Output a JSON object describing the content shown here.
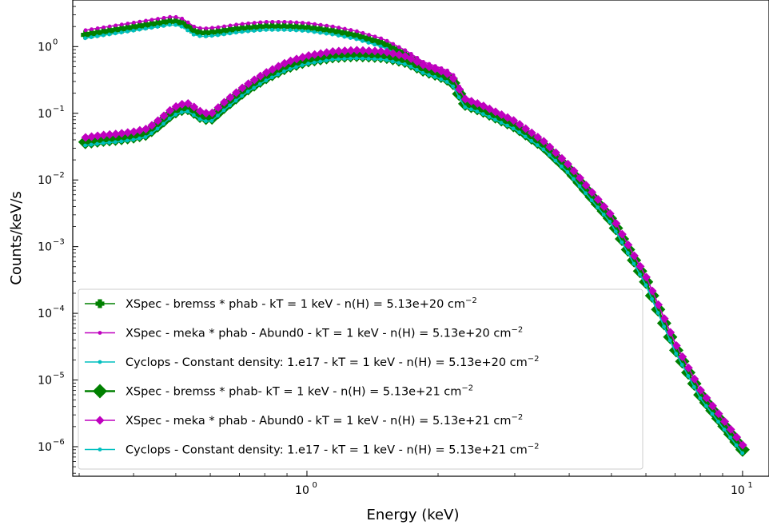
{
  "chart_data": {
    "type": "line",
    "xlabel": "Energy (keV)",
    "ylabel": "Counts/keV/s",
    "x_scale": "log",
    "y_scale": "log",
    "xlim": [
      0.29,
      11.5
    ],
    "ylim": [
      3.6e-07,
      5.0
    ],
    "x_ticks": [
      {
        "value": 1,
        "base": "10",
        "exp": "0"
      },
      {
        "value": 10,
        "base": "10",
        "exp": "1"
      }
    ],
    "y_ticks": [
      {
        "value": 1,
        "base": "10",
        "exp": "0"
      },
      {
        "value": 0.1,
        "base": "10",
        "exp": "−1"
      },
      {
        "value": 0.01,
        "base": "10",
        "exp": "−2"
      },
      {
        "value": 0.001,
        "base": "10",
        "exp": "−3"
      },
      {
        "value": 0.0001,
        "base": "10",
        "exp": "−4"
      },
      {
        "value": 1e-05,
        "base": "10",
        "exp": "−5"
      },
      {
        "value": 1e-06,
        "base": "10",
        "exp": "−6"
      }
    ],
    "legend_position": "lower-left",
    "series_defs": [
      {
        "name": "XSpec - bremss * phab - kT = 1 keV - n(H) = 5.13e+20 cm",
        "sup": "−2",
        "color": "#008000",
        "marker": "plus",
        "family": "a",
        "dx": 0.0,
        "dy": 0.0
      },
      {
        "name": "XSpec - meka * phab - Abund0 - kT = 1 keV - n(H) = 5.13e+20 cm",
        "sup": "−2",
        "color": "#bf00bf",
        "marker": "dot",
        "family": "a",
        "dx": 0.012,
        "dy": 0.07
      },
      {
        "name": "Cyclops - Constant density: 1.e17 - kT = 1 keV - n(H) = 5.13e+20 cm",
        "sup": "−2",
        "color": "#00bfbf",
        "marker": "dot",
        "family": "a",
        "dx": -0.012,
        "dy": -0.05
      },
      {
        "name": "XSpec - bremss * phab- kT = 1 keV - n(H) = 5.13e+21 cm",
        "sup": "−2",
        "color": "#008000",
        "marker": "diamond",
        "family": "b",
        "dx": 0.0,
        "dy": 0.0
      },
      {
        "name": "XSpec - meka * phab - Abund0 - kT = 1 keV - n(H) = 5.13e+21 cm",
        "sup": "−2",
        "color": "#bf00bf",
        "marker": "diamond-small",
        "family": "b",
        "dx": 0.012,
        "dy": 0.07
      },
      {
        "name": "Cyclops - Constant density: 1.e17 - kT = 1 keV - n(H) = 5.13e+21 cm",
        "sup": "−2",
        "color": "#00bfbf",
        "marker": "dot",
        "family": "b",
        "dx": -0.012,
        "dy": -0.05
      }
    ],
    "curves": {
      "a": {
        "x": [
          0.31,
          0.34,
          0.37,
          0.4,
          0.43,
          0.46,
          0.49,
          0.505,
          0.52,
          0.55,
          0.575,
          0.62,
          0.7,
          0.8,
          0.9,
          1.0,
          1.15,
          1.3,
          1.5,
          1.7,
          1.85,
          2.0,
          2.15,
          2.3,
          2.5,
          3.0,
          3.5,
          4.0,
          5.0,
          6.0,
          7.0,
          8.0,
          9.0,
          10.0
        ],
        "y": [
          1.5,
          1.65,
          1.8,
          1.95,
          2.1,
          2.25,
          2.4,
          2.35,
          2.2,
          1.7,
          1.58,
          1.65,
          1.85,
          2.0,
          2.0,
          1.92,
          1.7,
          1.45,
          1.1,
          0.72,
          0.5,
          0.42,
          0.35,
          0.15,
          0.12,
          0.065,
          0.032,
          0.014,
          0.0025,
          0.0003,
          3e-05,
          6e-06,
          2.2e-06,
          9e-07
        ]
      },
      "b": {
        "x": [
          0.31,
          0.34,
          0.37,
          0.4,
          0.43,
          0.46,
          0.49,
          0.51,
          0.535,
          0.57,
          0.6,
          0.65,
          0.72,
          0.8,
          0.9,
          1.0,
          1.15,
          1.3,
          1.5,
          1.7,
          1.85,
          2.0,
          2.15,
          2.3,
          2.5,
          3.0,
          3.5,
          4.0,
          5.0,
          6.0,
          7.0,
          8.0,
          9.0,
          10.0
        ],
        "y": [
          0.037,
          0.04,
          0.042,
          0.045,
          0.05,
          0.07,
          0.1,
          0.115,
          0.12,
          0.09,
          0.082,
          0.13,
          0.22,
          0.34,
          0.5,
          0.62,
          0.72,
          0.75,
          0.72,
          0.6,
          0.45,
          0.38,
          0.31,
          0.14,
          0.115,
          0.065,
          0.032,
          0.014,
          0.0025,
          0.0003,
          3e-05,
          6e-06,
          2.2e-06,
          9e-07
        ]
      }
    }
  }
}
